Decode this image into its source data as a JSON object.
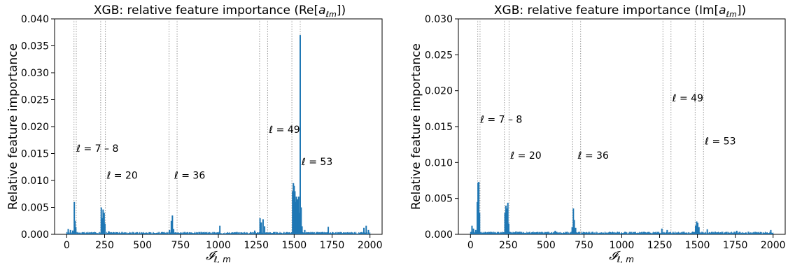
{
  "chart_data": [
    {
      "type": "bar",
      "title": "XGB: relative feature importance (Re[a_{ℓm}])",
      "title_main": "XGB: relative feature importance (Re[",
      "title_sym": "a",
      "title_sub": "ℓm",
      "title_end": "])",
      "xlabel_main": "𝓘",
      "xlabel_sub": "ℓ, m",
      "ylabel": "Relative feature importance",
      "xlim": [
        -80,
        2080
      ],
      "ylim": [
        0,
        0.04
      ],
      "xticks": [
        0,
        250,
        500,
        750,
        1000,
        1250,
        1500,
        1750,
        2000
      ],
      "yticks": [
        "0.000",
        "0.005",
        "0.010",
        "0.015",
        "0.020",
        "0.025",
        "0.030",
        "0.035",
        "0.040"
      ],
      "ytick_values": [
        0,
        0.005,
        0.01,
        0.015,
        0.02,
        0.025,
        0.03,
        0.035,
        0.04
      ],
      "color": "#1f77b4",
      "vlines": [
        48,
        63,
        224,
        255,
        675,
        728,
        1272,
        1325,
        1485,
        1540
      ],
      "annotations": [
        {
          "text": "ℓ = 7 – 8",
          "x": 55,
          "y": 0.016
        },
        {
          "text": "ℓ = 20",
          "x": 255,
          "y": 0.011
        },
        {
          "text": "ℓ = 36",
          "x": 700,
          "y": 0.011
        },
        {
          "text": "ℓ = 49",
          "x": 1325,
          "y": 0.0195
        },
        {
          "text": "ℓ = 53",
          "x": 1540,
          "y": 0.0135
        }
      ],
      "peaks": [
        {
          "x": 10,
          "y": 0.001
        },
        {
          "x": 25,
          "y": 0.0008
        },
        {
          "x": 40,
          "y": 0.0007
        },
        {
          "x": 50,
          "y": 0.006
        },
        {
          "x": 55,
          "y": 0.0025
        },
        {
          "x": 60,
          "y": 0.0013
        },
        {
          "x": 228,
          "y": 0.005
        },
        {
          "x": 234,
          "y": 0.003
        },
        {
          "x": 240,
          "y": 0.0046
        },
        {
          "x": 247,
          "y": 0.004
        },
        {
          "x": 252,
          "y": 0.002
        },
        {
          "x": 278,
          "y": 0.0006
        },
        {
          "x": 330,
          "y": 0.0004
        },
        {
          "x": 678,
          "y": 0.0008
        },
        {
          "x": 690,
          "y": 0.0025
        },
        {
          "x": 697,
          "y": 0.0035
        },
        {
          "x": 705,
          "y": 0.001
        },
        {
          "x": 900,
          "y": 0.0004
        },
        {
          "x": 1010,
          "y": 0.0016
        },
        {
          "x": 1240,
          "y": 0.0007
        },
        {
          "x": 1275,
          "y": 0.003
        },
        {
          "x": 1283,
          "y": 0.0022
        },
        {
          "x": 1295,
          "y": 0.0028
        },
        {
          "x": 1305,
          "y": 0.0015
        },
        {
          "x": 1490,
          "y": 0.008
        },
        {
          "x": 1495,
          "y": 0.0095
        },
        {
          "x": 1500,
          "y": 0.009
        },
        {
          "x": 1505,
          "y": 0.008
        },
        {
          "x": 1510,
          "y": 0.006
        },
        {
          "x": 1515,
          "y": 0.007
        },
        {
          "x": 1522,
          "y": 0.0065
        },
        {
          "x": 1530,
          "y": 0.007
        },
        {
          "x": 1535,
          "y": 0.004
        },
        {
          "x": 1540,
          "y": 0.037
        },
        {
          "x": 1546,
          "y": 0.005
        },
        {
          "x": 1552,
          "y": 0.0015
        },
        {
          "x": 1570,
          "y": 0.0008
        },
        {
          "x": 1725,
          "y": 0.0014
        },
        {
          "x": 1960,
          "y": 0.0012
        },
        {
          "x": 1975,
          "y": 0.0016
        },
        {
          "x": 1990,
          "y": 0.0008
        }
      ],
      "baseline": 0.0003
    },
    {
      "type": "bar",
      "title": "XGB: relative feature importance (Im[a_{ℓm}])",
      "title_main": "XGB: relative feature importance (Im[",
      "title_sym": "a",
      "title_sub": "ℓm",
      "title_end": "])",
      "xlabel_main": "𝓘",
      "xlabel_sub": "ℓ, m",
      "ylabel": "Relative feature importance",
      "xlim": [
        -80,
        2080
      ],
      "ylim": [
        0,
        0.03
      ],
      "xticks": [
        0,
        250,
        500,
        750,
        1000,
        1250,
        1500,
        1750,
        2000
      ],
      "yticks": [
        "0.000",
        "0.005",
        "0.010",
        "0.015",
        "0.020",
        "0.025",
        "0.030"
      ],
      "ytick_values": [
        0,
        0.005,
        0.01,
        0.015,
        0.02,
        0.025,
        0.03
      ],
      "color": "#1f77b4",
      "vlines": [
        48,
        63,
        224,
        255,
        675,
        728,
        1272,
        1325,
        1485,
        1540
      ],
      "annotations": [
        {
          "text": "ℓ = 7 – 8",
          "x": 55,
          "y": 0.016
        },
        {
          "text": "ℓ = 20",
          "x": 255,
          "y": 0.011
        },
        {
          "text": "ℓ = 36",
          "x": 700,
          "y": 0.011
        },
        {
          "text": "ℓ = 49",
          "x": 1325,
          "y": 0.019
        },
        {
          "text": "ℓ = 53",
          "x": 1540,
          "y": 0.013
        }
      ],
      "peaks": [
        {
          "x": 10,
          "y": 0.0012
        },
        {
          "x": 20,
          "y": 0.0008
        },
        {
          "x": 35,
          "y": 0.0006
        },
        {
          "x": 45,
          "y": 0.0045
        },
        {
          "x": 50,
          "y": 0.0072
        },
        {
          "x": 55,
          "y": 0.0073
        },
        {
          "x": 60,
          "y": 0.003
        },
        {
          "x": 228,
          "y": 0.003
        },
        {
          "x": 234,
          "y": 0.004
        },
        {
          "x": 240,
          "y": 0.0036
        },
        {
          "x": 247,
          "y": 0.0044
        },
        {
          "x": 253,
          "y": 0.0015
        },
        {
          "x": 300,
          "y": 0.0004
        },
        {
          "x": 560,
          "y": 0.0005
        },
        {
          "x": 672,
          "y": 0.001
        },
        {
          "x": 680,
          "y": 0.0036
        },
        {
          "x": 686,
          "y": 0.002
        },
        {
          "x": 695,
          "y": 0.0009
        },
        {
          "x": 1265,
          "y": 0.0008
        },
        {
          "x": 1300,
          "y": 0.0006
        },
        {
          "x": 1488,
          "y": 0.0012
        },
        {
          "x": 1495,
          "y": 0.0018
        },
        {
          "x": 1502,
          "y": 0.0016
        },
        {
          "x": 1510,
          "y": 0.001
        },
        {
          "x": 1565,
          "y": 0.0007
        },
        {
          "x": 1760,
          "y": 0.0005
        },
        {
          "x": 1985,
          "y": 0.0006
        }
      ],
      "baseline": 0.00025
    }
  ]
}
